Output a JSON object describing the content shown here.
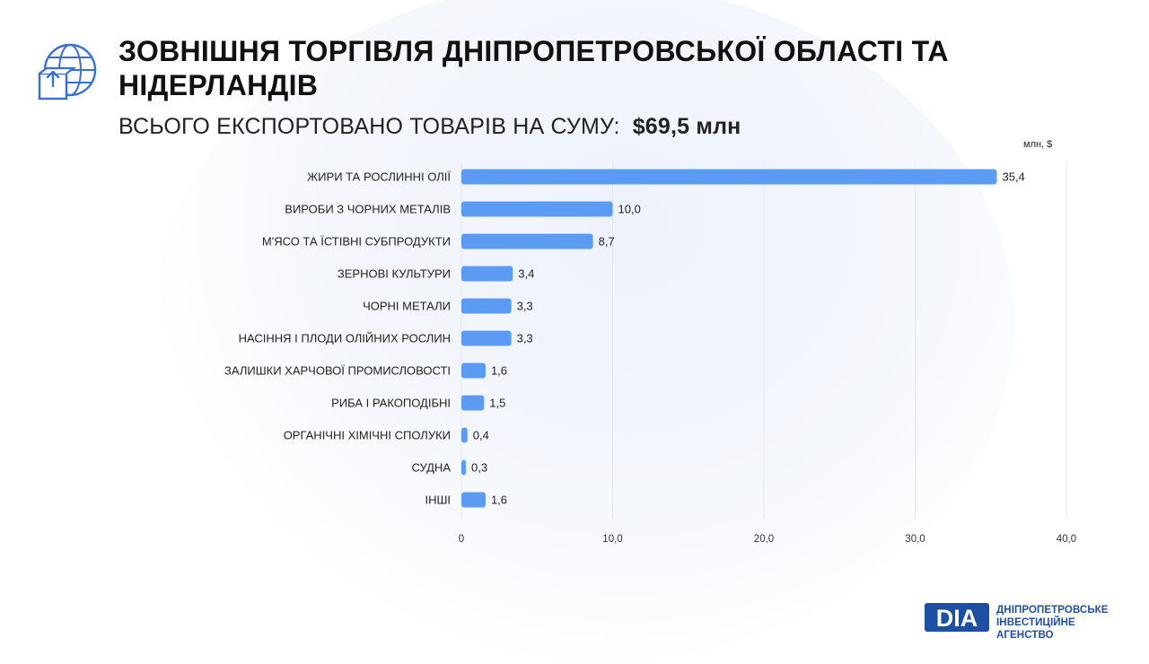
{
  "title": "ЗОВНІШНЯ ТОРГІВЛЯ ДНІПРОПЕТРОВСЬКОЇ ОБЛАСТІ ТА НІДЕРЛАНДІВ",
  "subtitle_label": "ВСЬОГО ЕКСПОРТОВАНО ТОВАРІВ НА СУМУ:",
  "subtitle_total": "$69,5 млн",
  "brand": {
    "mark": "DIA",
    "line1": "ДНІПРОПЕТРОВСЬКЕ",
    "line2": "ІНВЕСТИЦІЙНЕ АГЕНСТВО"
  },
  "colors": {
    "bar": "#5b9bf3",
    "brand": "#1d4fa3",
    "grid": "#e4e7ec"
  },
  "icons": {
    "header": "globe-box-export-icon"
  },
  "chart_data": {
    "type": "bar",
    "orientation": "horizontal",
    "unit_label": "млн, $",
    "categories": [
      "ЖИРИ ТА РОСЛИННІ ОЛІЇ",
      "ВИРОБИ З ЧОРНИХ МЕТАЛІВ",
      "М'ЯСО ТА ЇСТІВНІ СУБПРОДУКТИ",
      "ЗЕРНОВІ КУЛЬТУРИ",
      "ЧОРНІ МЕТАЛИ",
      "НАСІННЯ І ПЛОДИ ОЛІЙНИХ РОСЛИН",
      "ЗАЛИШКИ ХАРЧОВОЇ ПРОМИСЛОВОСТІ",
      "РИБА І РАКОПОДІБНІ",
      "ОРГАНІЧНІ ХІМІЧНІ СПОЛУКИ",
      "СУДНА",
      "ІНШІ"
    ],
    "values": [
      35.4,
      10.0,
      8.7,
      3.4,
      3.3,
      3.3,
      1.6,
      1.5,
      0.4,
      0.3,
      1.6
    ],
    "value_labels": [
      "35,4",
      "10,0",
      "8,7",
      "3,4",
      "3,3",
      "3,3",
      "1,6",
      "1,5",
      "0,4",
      "0,3",
      "1,6"
    ],
    "xlim": [
      0,
      40
    ],
    "x_ticks": [
      0,
      10,
      20,
      30,
      40
    ],
    "x_tick_labels": [
      "0",
      "10,0",
      "20,0",
      "30,0",
      "40,0"
    ],
    "grid": true
  }
}
